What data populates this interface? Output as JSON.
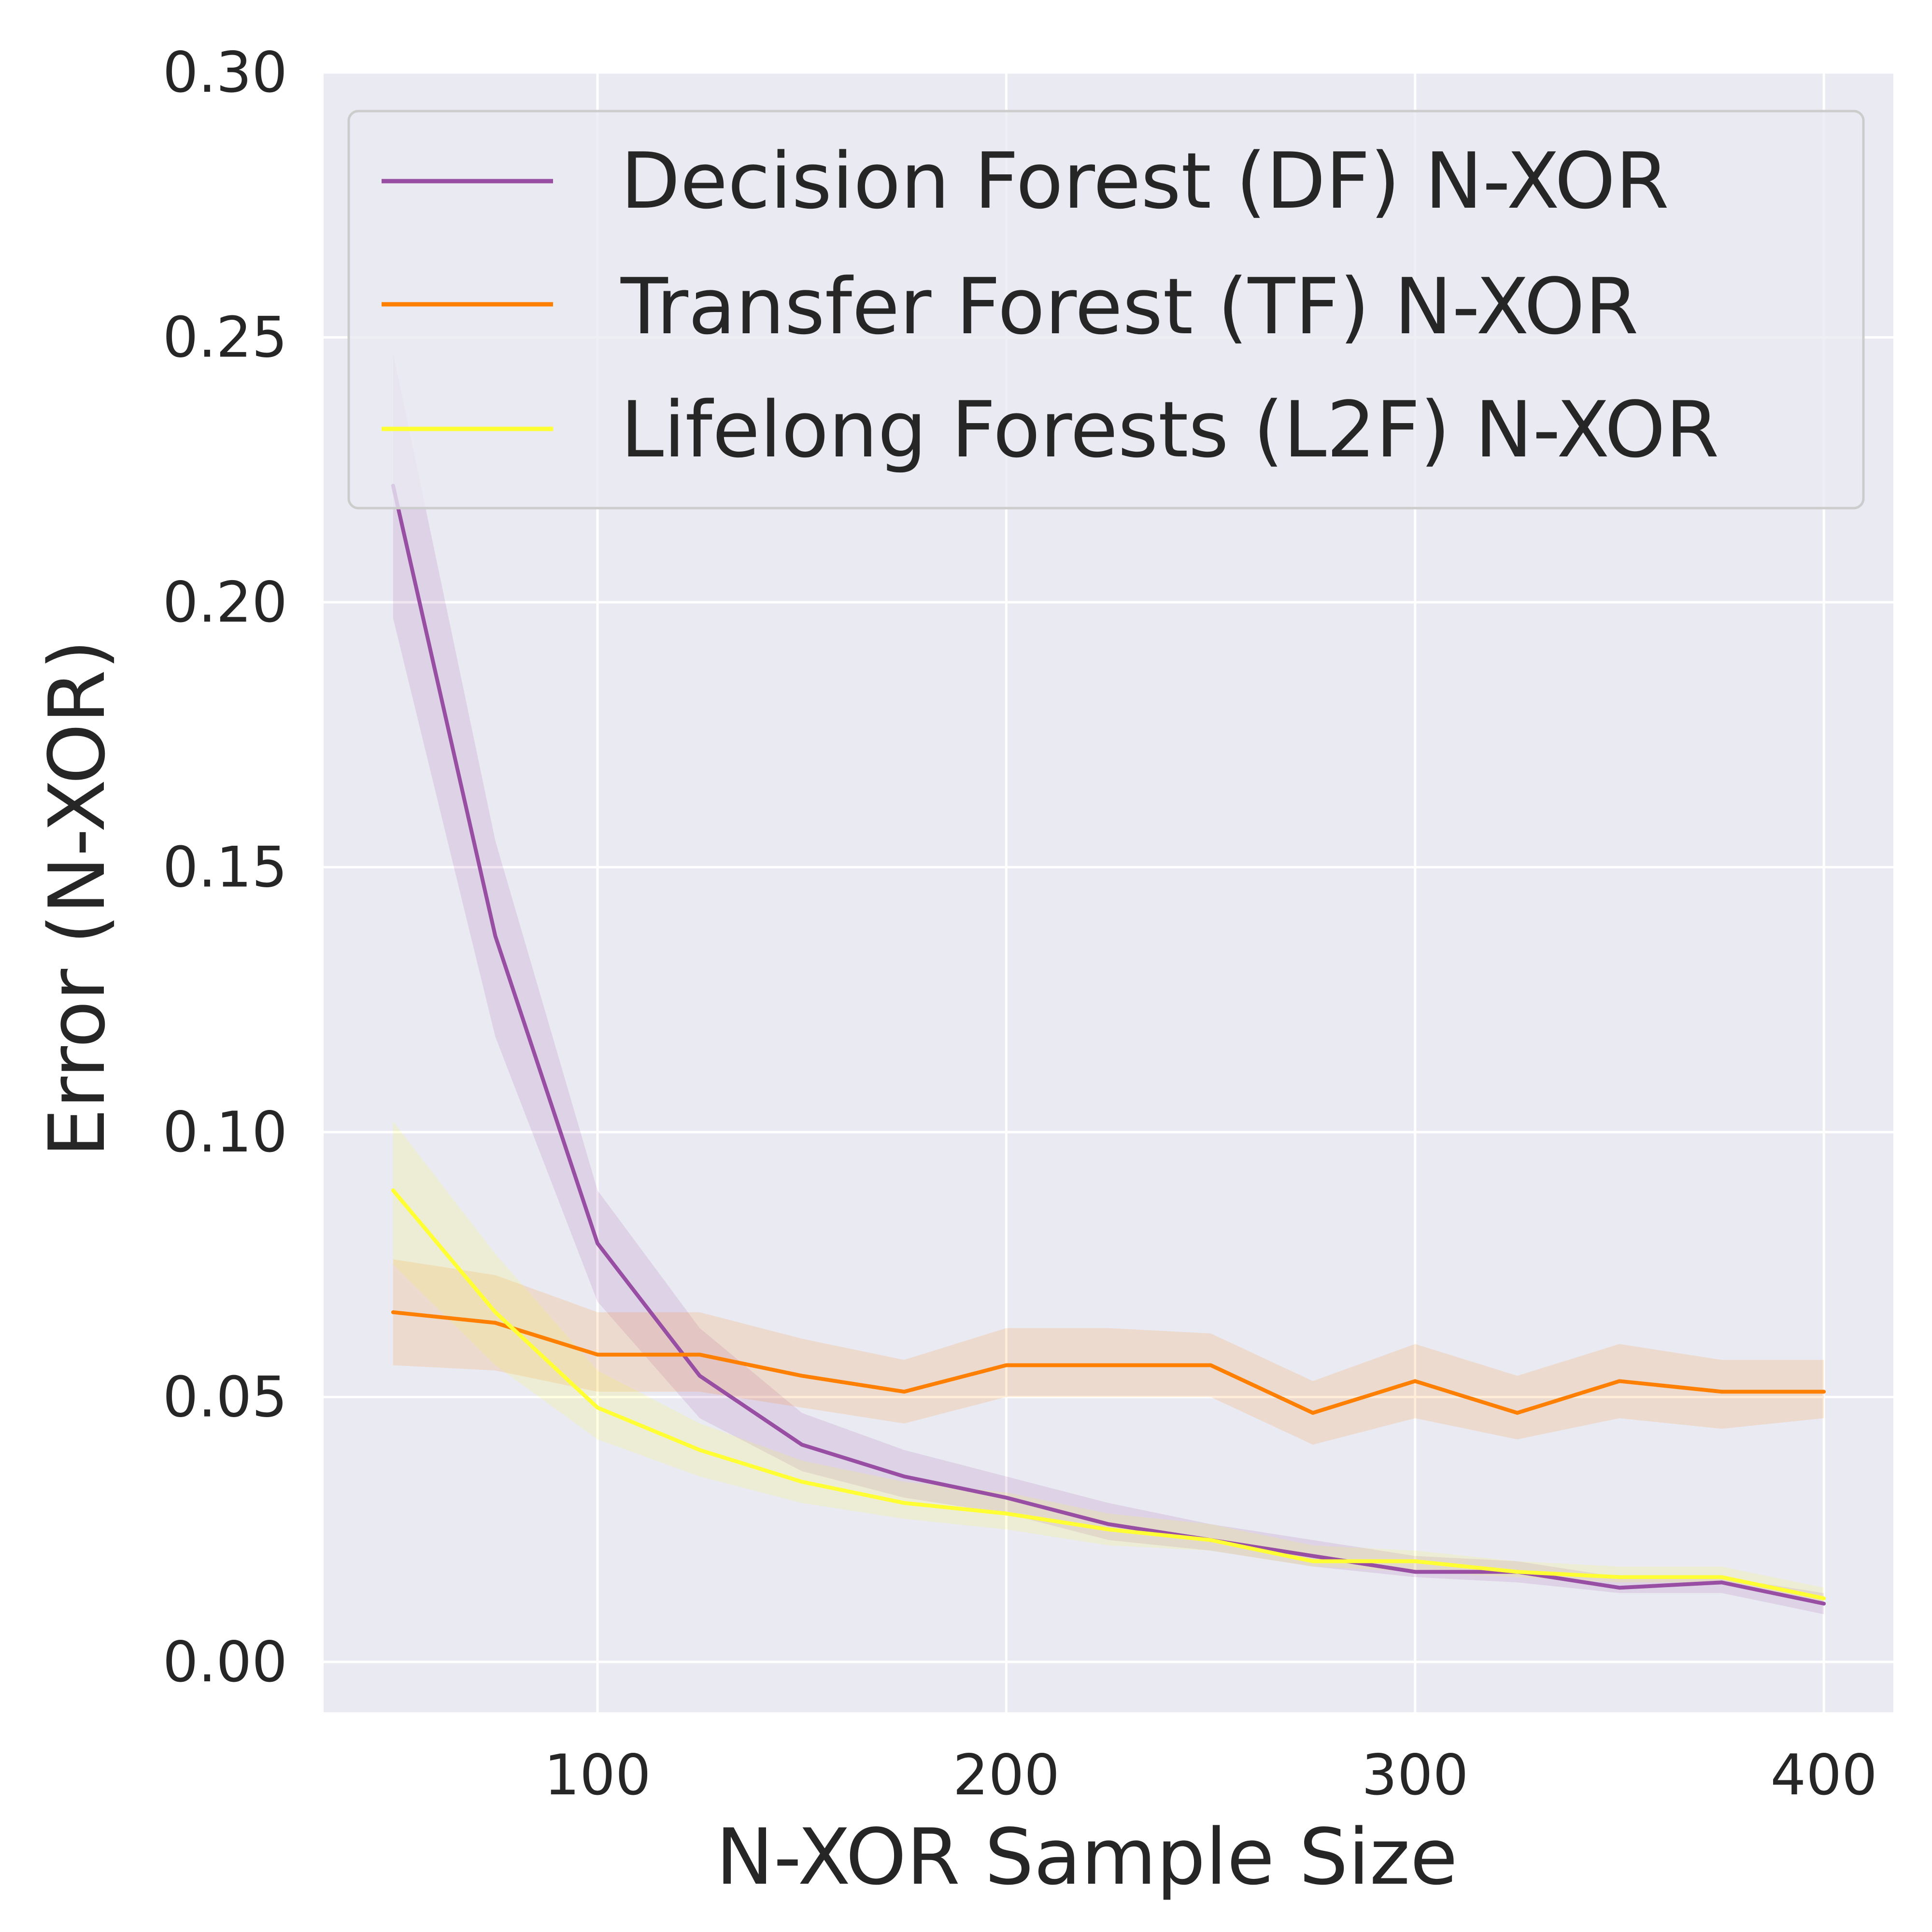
{
  "chart_data": {
    "type": "line",
    "xlabel": "N-XOR Sample Size",
    "ylabel": "Error (N-XOR)",
    "xlim": [
      33,
      417
    ],
    "ylim": [
      -0.0095,
      0.3
    ],
    "xticks": [
      100,
      200,
      300,
      400
    ],
    "yticks": [
      0.0,
      0.05,
      0.1,
      0.15,
      0.2,
      0.25,
      0.3
    ],
    "ytick_labels": [
      "0.00",
      "0.05",
      "0.10",
      "0.15",
      "0.20",
      "0.25",
      "0.30"
    ],
    "xtick_labels": [
      "100",
      "200",
      "300",
      "400"
    ],
    "grid": true,
    "legend_position": "top-right",
    "x": [
      50,
      75,
      100,
      125,
      150,
      175,
      200,
      225,
      250,
      275,
      300,
      325,
      350,
      375,
      400
    ],
    "series": [
      {
        "name": "Decision Forest (DF) N-XOR",
        "color": "#984ea3",
        "values": [
          0.222,
          0.137,
          0.079,
          0.054,
          0.041,
          0.035,
          0.031,
          0.026,
          0.023,
          0.02,
          0.017,
          0.017,
          0.014,
          0.015,
          0.011
        ],
        "lower": [
          0.197,
          0.118,
          0.068,
          0.046,
          0.036,
          0.031,
          0.028,
          0.023,
          0.021,
          0.018,
          0.016,
          0.015,
          0.013,
          0.013,
          0.009
        ],
        "upper": [
          0.247,
          0.155,
          0.089,
          0.063,
          0.047,
          0.04,
          0.035,
          0.03,
          0.026,
          0.023,
          0.02,
          0.019,
          0.016,
          0.016,
          0.013
        ]
      },
      {
        "name": "Transfer Forest (TF) N-XOR",
        "color": "#ff7f00",
        "values": [
          0.066,
          0.064,
          0.058,
          0.058,
          0.054,
          0.051,
          0.056,
          0.056,
          0.056,
          0.047,
          0.053,
          0.047,
          0.053,
          0.051,
          0.051
        ],
        "lower": [
          0.056,
          0.055,
          0.051,
          0.051,
          0.048,
          0.045,
          0.05,
          0.05,
          0.05,
          0.041,
          0.046,
          0.042,
          0.046,
          0.044,
          0.046
        ],
        "upper": [
          0.076,
          0.073,
          0.066,
          0.066,
          0.061,
          0.057,
          0.063,
          0.063,
          0.062,
          0.053,
          0.06,
          0.054,
          0.06,
          0.057,
          0.057
        ]
      },
      {
        "name": "Lifelong Forests (L2F) N-XOR",
        "color": "#ffff33",
        "values": [
          0.089,
          0.066,
          0.048,
          0.04,
          0.034,
          0.03,
          0.028,
          0.025,
          0.023,
          0.019,
          0.019,
          0.017,
          0.016,
          0.016,
          0.012
        ],
        "lower": [
          0.075,
          0.056,
          0.042,
          0.035,
          0.03,
          0.027,
          0.025,
          0.022,
          0.021,
          0.018,
          0.017,
          0.016,
          0.015,
          0.015,
          0.011
        ],
        "upper": [
          0.102,
          0.077,
          0.055,
          0.045,
          0.038,
          0.034,
          0.032,
          0.028,
          0.026,
          0.022,
          0.021,
          0.019,
          0.018,
          0.018,
          0.014
        ]
      }
    ]
  }
}
